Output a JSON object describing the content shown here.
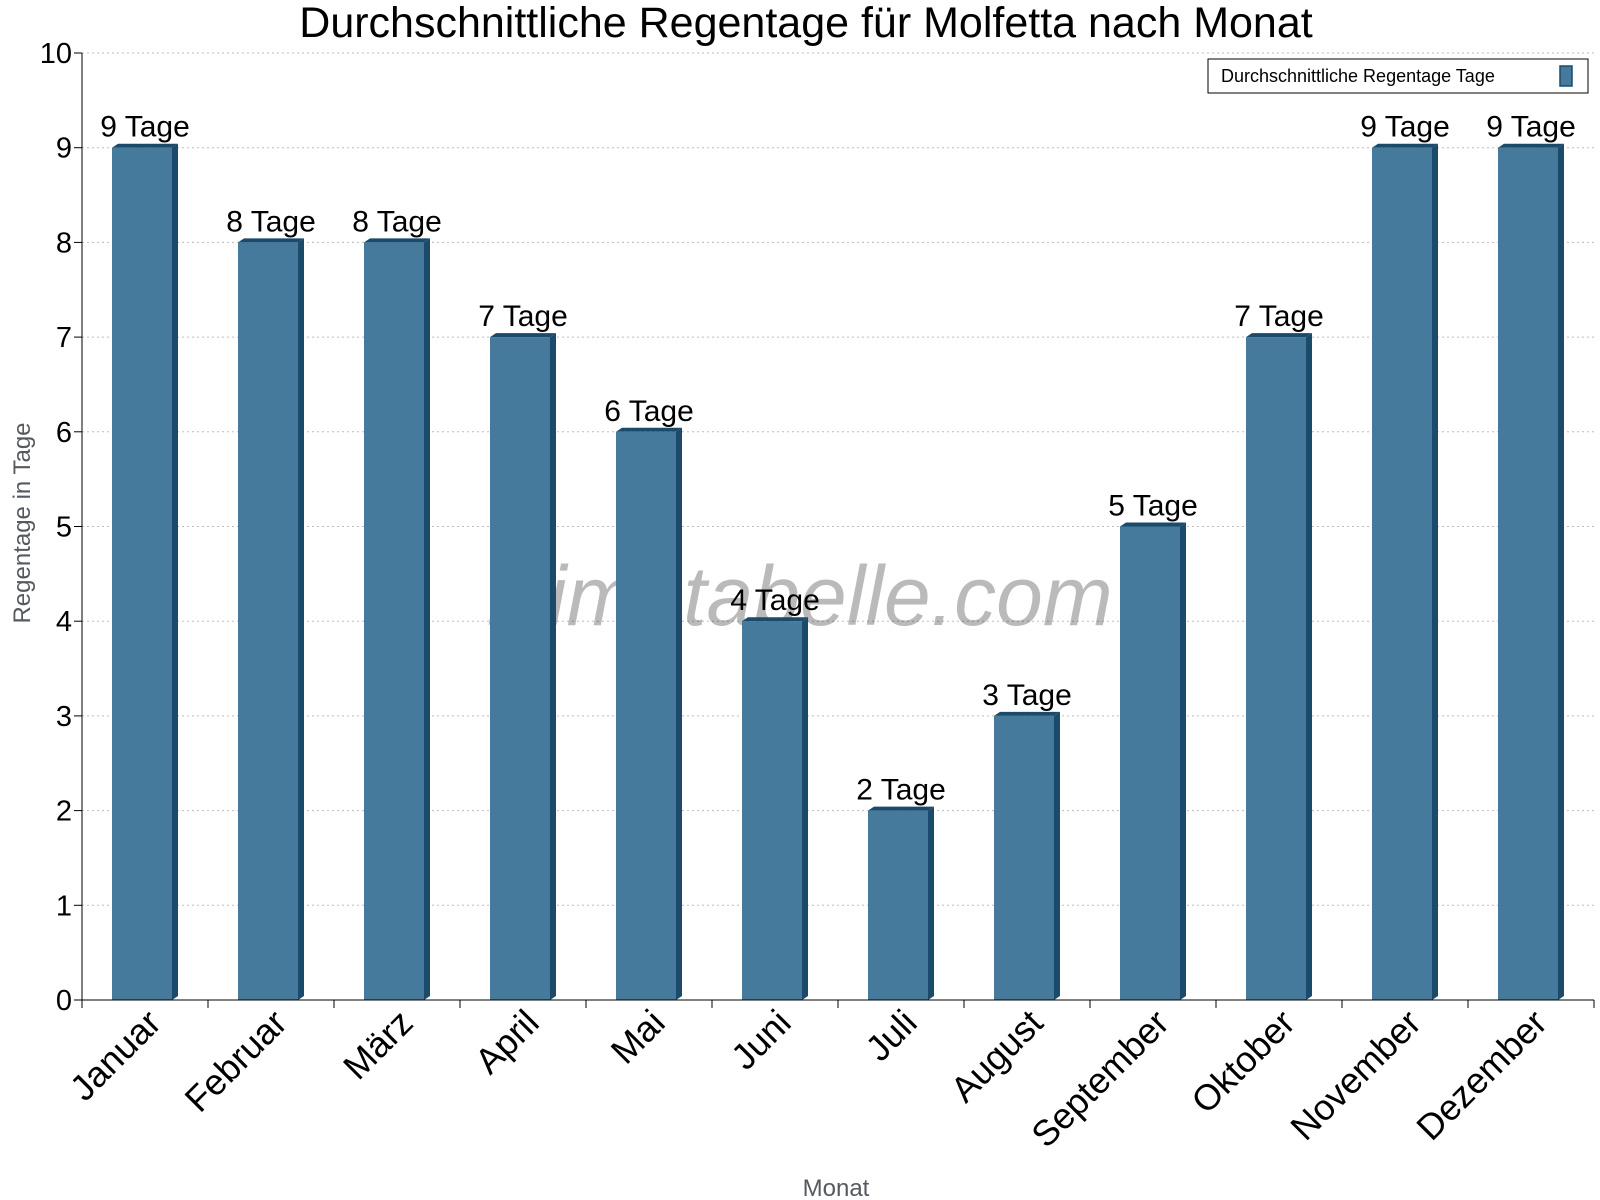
{
  "chart_data": {
    "type": "bar",
    "title": "Durchschnittliche Regentage für Molfetta nach Monat",
    "xlabel": "Monat",
    "ylabel": "Regentage in Tage",
    "ylim": [
      0,
      10
    ],
    "yticks": [
      "0",
      "1",
      "2",
      "3",
      "4",
      "5",
      "6",
      "7",
      "8",
      "9",
      "10"
    ],
    "grid": true,
    "legend_position": "top-right",
    "categories": [
      "Januar",
      "Februar",
      "März",
      "April",
      "Mai",
      "Juni",
      "Juli",
      "August",
      "September",
      "Oktober",
      "November",
      "Dezember"
    ],
    "series": [
      {
        "name": "Durchschnittliche Regentage Tage",
        "values": [
          9,
          8,
          8,
          7,
          6,
          4,
          2,
          3,
          5,
          7,
          9,
          9
        ],
        "labels": [
          "9 Tage",
          "8 Tage",
          "8 Tage",
          "7 Tage",
          "6 Tage",
          "4 Tage",
          "2 Tage",
          "3 Tage",
          "5 Tage",
          "7 Tage",
          "9 Tage",
          "9 Tage"
        ],
        "color": "#457a9c",
        "edge_color": "#1b4a6b"
      }
    ]
  },
  "watermark": "klimatabelle.com"
}
